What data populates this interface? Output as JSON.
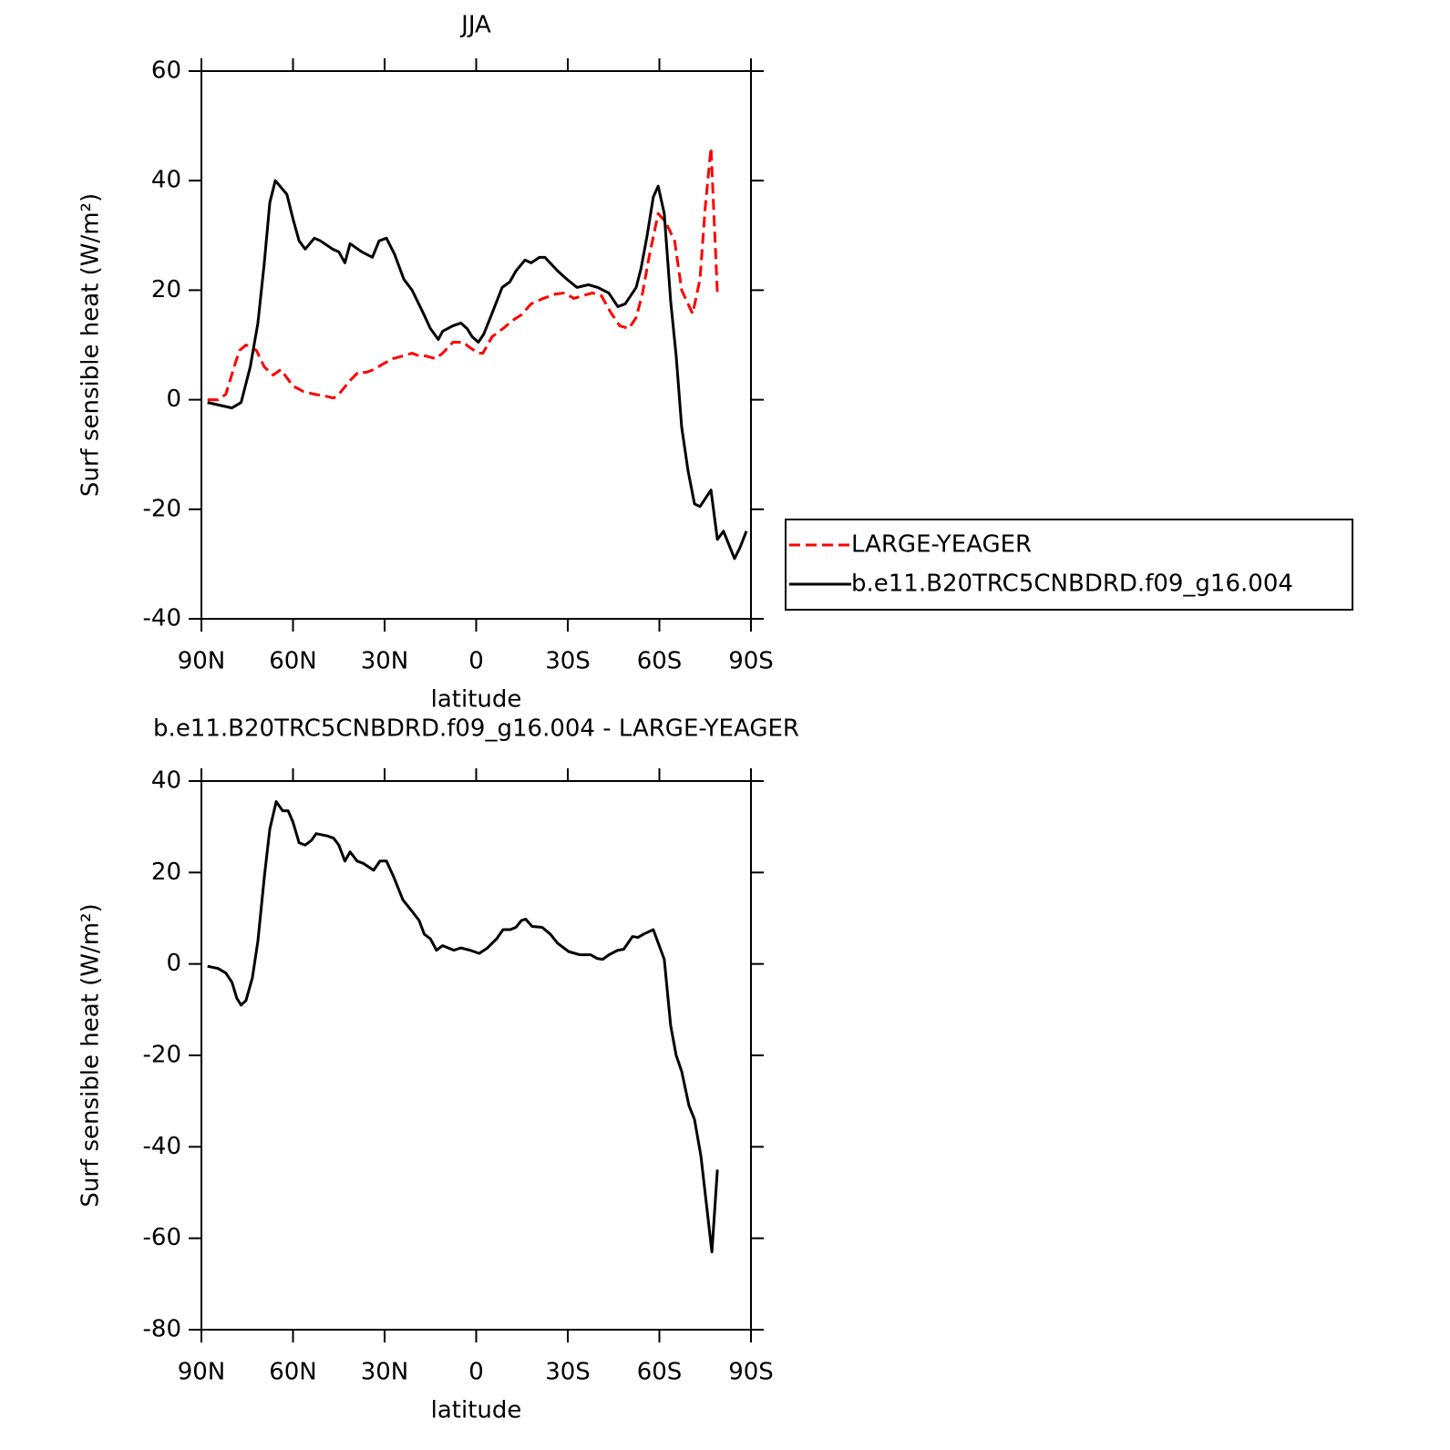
{
  "chart_data": [
    {
      "type": "line",
      "title": "JJA",
      "xlabel": "latitude",
      "ylabel": "Surf sensible heat (W/m²)",
      "xlim": [
        90,
        -90
      ],
      "xticks": [
        {
          "value": 90,
          "label": "90N"
        },
        {
          "value": 60,
          "label": "60N"
        },
        {
          "value": 30,
          "label": "30N"
        },
        0,
        {
          "value": -30,
          "label": "30S"
        },
        {
          "value": -60,
          "label": "60S"
        },
        {
          "value": -90,
          "label": "90S"
        }
      ],
      "ylim": [
        -40,
        60
      ],
      "yticks": [
        -40,
        -20,
        0,
        20,
        40,
        60
      ],
      "legend": "outside right",
      "series": [
        {
          "name": "LARGE-YEAGER",
          "color": "#ff0000",
          "style": "dashed",
          "x": [
            88,
            84.5,
            82,
            79,
            77.5,
            75.4,
            72,
            69.4,
            66.5,
            64,
            62,
            60,
            56.6,
            53,
            49.7,
            46.7,
            45,
            41.3,
            38.7,
            36,
            33.6,
            30.6,
            27.3,
            24,
            21,
            18.7,
            16.6,
            13.3,
            11,
            7.6,
            4.3,
            2,
            -0.7,
            -2.2,
            -5.2,
            -8.8,
            -12,
            -14.8,
            -18,
            -22,
            -26,
            -29,
            -32,
            -35,
            -38,
            -41,
            -44,
            -47,
            -50,
            -52.4,
            -54.5,
            -56.6,
            -59.6,
            -62,
            -65,
            -67.3,
            -70.9,
            -73.3,
            -75,
            -76.9,
            -79
          ],
          "values": [
            0,
            0,
            1,
            6.5,
            9,
            10,
            9,
            6,
            4.5,
            5.5,
            4,
            2.5,
            1.5,
            1,
            0.7,
            0.3,
            1,
            3.5,
            5,
            5,
            5.5,
            6.5,
            7.5,
            8,
            8.5,
            8,
            8,
            7.5,
            8.5,
            10.5,
            10.5,
            9.5,
            8.5,
            8.5,
            11.5,
            13,
            14.5,
            15.5,
            17.5,
            18.5,
            19.3,
            19.5,
            18.5,
            19,
            19.5,
            19,
            16,
            13.5,
            13,
            15,
            19.5,
            26,
            34,
            32.5,
            29,
            20,
            15.7,
            22,
            35,
            46,
            19.5
          ]
        },
        {
          "name": "b.e11.B20TRC5CNBDRD.f09_g16.004",
          "color": "#000000",
          "style": "solid",
          "x": [
            88,
            80,
            77,
            74,
            71.5,
            69.4,
            67.6,
            65.8,
            62,
            60,
            58,
            56,
            53,
            51,
            47,
            45,
            43,
            41.3,
            37.5,
            34,
            31.8,
            29.4,
            26.7,
            23.7,
            21,
            17.5,
            15,
            12.4,
            11,
            7.6,
            5,
            3,
            1.3,
            -0.7,
            -2.5,
            -5,
            -8.5,
            -11,
            -13,
            -16,
            -18,
            -20.7,
            -22.5,
            -26.7,
            -29.7,
            -33,
            -36.8,
            -39.8,
            -43.4,
            -46.4,
            -48.8,
            -52.4,
            -54,
            -56,
            -58,
            -59.6,
            -61.6,
            -63.7,
            -65.5,
            -67.3,
            -69.4,
            -71.5,
            -73.3,
            -76.9,
            -79,
            -81,
            -82.8,
            -84.6,
            -86.4,
            -88.5
          ],
          "values": [
            -0.5,
            -1.5,
            -0.5,
            6,
            14,
            25,
            36,
            40,
            37.5,
            33,
            29,
            27.5,
            29.5,
            29,
            27.5,
            27,
            25,
            28.5,
            27,
            26,
            29,
            29.5,
            26.5,
            22,
            20,
            16,
            13,
            11,
            12.5,
            13.5,
            14,
            13,
            11.5,
            10.5,
            12,
            15.5,
            20.5,
            21.5,
            23.5,
            25.5,
            25,
            26,
            26,
            23.5,
            22,
            20.5,
            21,
            20.5,
            19.5,
            17,
            17.5,
            20.5,
            24,
            30,
            37,
            39,
            34,
            18,
            8,
            -5,
            -13,
            -19,
            -19.5,
            -16.5,
            -25.5,
            -24,
            -26.5,
            -29,
            -27,
            -24
          ]
        }
      ]
    },
    {
      "type": "line",
      "title": "b.e11.B20TRC5CNBDRD.f09_g16.004 - LARGE-YEAGER",
      "xlabel": "latitude",
      "ylabel": "Surf sensible heat (W/m²)",
      "xlim": [
        90,
        -90
      ],
      "xticks": [
        {
          "value": 90,
          "label": "90N"
        },
        {
          "value": 60,
          "label": "60N"
        },
        {
          "value": 30,
          "label": "30N"
        },
        0,
        {
          "value": -30,
          "label": "30S"
        },
        {
          "value": -60,
          "label": "60S"
        },
        {
          "value": -90,
          "label": "90S"
        }
      ],
      "ylim": [
        -80,
        40
      ],
      "yticks": [
        -80,
        -60,
        -40,
        -20,
        0,
        20,
        40
      ],
      "series": [
        {
          "color": "#000000",
          "style": "solid",
          "x": [
            88,
            84.5,
            82,
            80,
            78.4,
            77,
            75.4,
            73.3,
            71.5,
            69.4,
            67.6,
            65.5,
            63.4,
            61.6,
            60,
            58,
            56,
            54,
            52.4,
            48.8,
            46.7,
            45,
            43,
            41.3,
            39,
            37,
            33.6,
            31.5,
            29.4,
            27,
            24,
            21,
            18.7,
            17,
            15,
            13,
            11,
            7.3,
            5,
            2,
            -1,
            -3.7,
            -6.7,
            -8.8,
            -11.2,
            -13,
            -14.8,
            -16.2,
            -18.3,
            -21.6,
            -24.3,
            -26.7,
            -30.3,
            -34,
            -37.5,
            -39.6,
            -41.4,
            -43.5,
            -46.4,
            -48.3,
            -51.2,
            -53,
            -54.8,
            -58,
            -61.6,
            -63.7,
            -65.5,
            -67.3,
            -69.7,
            -71.5,
            -73.6,
            -77.2,
            -79
          ],
          "values": [
            -0.5,
            -1,
            -2,
            -4,
            -7.5,
            -9,
            -8,
            -3,
            5,
            19,
            29.5,
            35.5,
            33.5,
            33.5,
            31,
            26.5,
            26,
            27,
            28.5,
            28,
            27.5,
            26,
            22.5,
            24.5,
            22.5,
            22,
            20.5,
            22.5,
            22.5,
            19,
            14,
            11.5,
            9.5,
            6.5,
            5.5,
            3,
            4,
            3,
            3.5,
            3,
            2.3,
            3.5,
            5.5,
            7.5,
            7.5,
            8,
            9.5,
            9.8,
            8.2,
            8,
            6.5,
            4.5,
            2.7,
            2,
            2,
            1.2,
            1,
            2,
            3,
            3.2,
            6,
            5.8,
            6.5,
            7.5,
            1,
            -13.5,
            -20,
            -23.5,
            -31,
            -34,
            -42,
            -63,
            -45
          ]
        }
      ]
    }
  ]
}
